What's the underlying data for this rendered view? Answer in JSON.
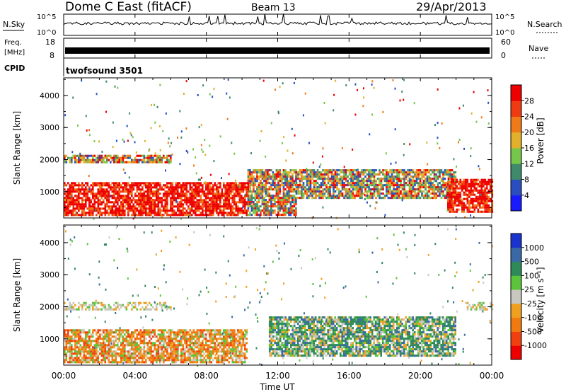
{
  "header": {
    "station": "Dome C East (fitACF)",
    "beam": "Beam 13",
    "date": "29/Apr/2013"
  },
  "status_panels": {
    "nsky_label": "N.Sky",
    "nsky_ticks": [
      "10^5",
      "10^0"
    ],
    "nsearch_label": "N.Search",
    "nsearch_ticks": [
      "10^5",
      "10^0"
    ],
    "freq_label_line1": "Freq.",
    "freq_label_line2": "[MHz]",
    "freq_ticks": [
      "18",
      "8"
    ],
    "nave_label": "Nave",
    "nave_ticks": [
      "60",
      "0"
    ],
    "cpid_label": "CPID",
    "cpid_value": "twofsound 3501"
  },
  "chart_data": [
    {
      "type": "heatmap",
      "panel": "power",
      "ylabel": "Slant Range [km]",
      "xlabel": "",
      "ylim": [
        180,
        4550
      ],
      "yticks": [
        "1000",
        "2000",
        "3000",
        "4000"
      ],
      "colorbar_label": "Power [dB]",
      "colorbar_ticks": [
        "4",
        "8",
        "12",
        "16",
        "20",
        "24",
        "28"
      ],
      "colorbar_colors": [
        "#1a1aff",
        "#2a4ec0",
        "#3f8a6a",
        "#76c64a",
        "#e2b02a",
        "#f07a18",
        "#f03a12",
        "#ee0000"
      ],
      "echo_bands": [
        {
          "range_km": [
            300,
            1300
          ],
          "time_h": [
            0,
            10.3
          ],
          "level": "high"
        },
        {
          "range_km": [
            300,
            1700
          ],
          "time_h": [
            10.3,
            13
          ],
          "level": "mixed"
        },
        {
          "range_km": [
            800,
            1700
          ],
          "time_h": [
            13,
            22
          ],
          "level": "medium"
        },
        {
          "range_km": [
            400,
            1400
          ],
          "time_h": [
            21.5,
            24
          ],
          "level": "high"
        },
        {
          "range_km": [
            1900,
            2150
          ],
          "time_h": [
            0,
            6
          ],
          "level": "medium"
        }
      ]
    },
    {
      "type": "heatmap",
      "panel": "velocity",
      "ylabel": "Slant Range [km]",
      "xlabel": "Time UT",
      "ylim": [
        180,
        4550
      ],
      "yticks": [
        "1000",
        "2000",
        "3000",
        "4000"
      ],
      "xticks": [
        "00:00",
        "04:00",
        "08:00",
        "12:00",
        "16:00",
        "20:00",
        "00:00"
      ],
      "colorbar_label": "Velocity [m s⁻¹]",
      "colorbar_ticks": [
        "1000",
        "500",
        "100",
        "25",
        "-25",
        "-100",
        "-500",
        "-1000"
      ],
      "colorbar_colors": [
        "#1a33cc",
        "#3a6aa6",
        "#2f8a5a",
        "#5cc43a",
        "#c8c8c0",
        "#f0a020",
        "#f07a10",
        "#f04010",
        "#ee0000"
      ],
      "echo_bands": [
        {
          "range_km": [
            300,
            1300
          ],
          "time_h": [
            0,
            10.3
          ],
          "level": "negative"
        },
        {
          "range_km": [
            500,
            1700
          ],
          "time_h": [
            11.5,
            22
          ],
          "level": "positive"
        },
        {
          "range_km": [
            1900,
            2150
          ],
          "time_h": [
            0,
            6
          ],
          "level": "ground"
        },
        {
          "range_km": [
            1900,
            2150
          ],
          "time_h": [
            22.5,
            24
          ],
          "level": "ground"
        }
      ]
    }
  ]
}
